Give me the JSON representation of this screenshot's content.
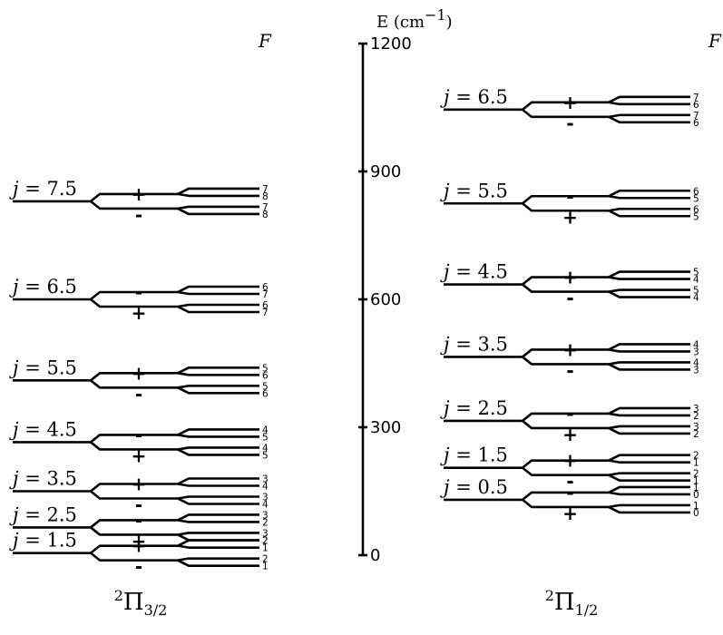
{
  "axis": {
    "title": "E (cm",
    "title_exp": "−1",
    "title_close": ")",
    "ticks": [
      0,
      300,
      600,
      900,
      1200
    ],
    "range": [
      0,
      1200
    ]
  },
  "F_header": "F",
  "ladders": [
    {
      "name": "pi-3-2",
      "title_sup": "2",
      "title_symbol": "Π",
      "title_sub": "3/2",
      "levels": [
        {
          "j": "1.5",
          "energy": 5,
          "upper_parity": "+",
          "lower_parity": "-",
          "F": [
            "2",
            "1",
            "2",
            "1"
          ]
        },
        {
          "j": "2.5",
          "energy": 65,
          "upper_parity": "-",
          "lower_parity": "+",
          "F": [
            "3",
            "2",
            "3",
            "2"
          ]
        },
        {
          "j": "3.5",
          "energy": 150,
          "upper_parity": "+",
          "lower_parity": "-",
          "F": [
            "3",
            "4",
            "3",
            "4"
          ]
        },
        {
          "j": "4.5",
          "energy": 265,
          "upper_parity": "-",
          "lower_parity": "+",
          "F": [
            "4",
            "5",
            "4",
            "5"
          ]
        },
        {
          "j": "5.5",
          "energy": 410,
          "upper_parity": "+",
          "lower_parity": "-",
          "F": [
            "5",
            "6",
            "5",
            "6"
          ]
        },
        {
          "j": "6.5",
          "energy": 600,
          "upper_parity": "-",
          "lower_parity": "+",
          "F": [
            "6",
            "7",
            "6",
            "7"
          ]
        },
        {
          "j": "7.5",
          "energy": 830,
          "upper_parity": "+",
          "lower_parity": "-",
          "F": [
            "7",
            "8",
            "7",
            "8"
          ]
        }
      ]
    },
    {
      "name": "pi-1-2",
      "title_sup": "2",
      "title_symbol": "Π",
      "title_sub": "1/2",
      "levels": [
        {
          "j": "0.5",
          "energy": 130,
          "upper_parity": "-",
          "lower_parity": "+",
          "F": [
            "1",
            "0",
            "1",
            "0"
          ]
        },
        {
          "j": "1.5",
          "energy": 205,
          "upper_parity": "+",
          "lower_parity": "-",
          "F": [
            "2",
            "1",
            "2",
            "1"
          ]
        },
        {
          "j": "2.5",
          "energy": 315,
          "upper_parity": "-",
          "lower_parity": "+",
          "F": [
            "3",
            "2",
            "3",
            "2"
          ]
        },
        {
          "j": "3.5",
          "energy": 465,
          "upper_parity": "+",
          "lower_parity": "-",
          "F": [
            "4",
            "3",
            "4",
            "3"
          ]
        },
        {
          "j": "4.5",
          "energy": 635,
          "upper_parity": "+",
          "lower_parity": "-",
          "F": [
            "5",
            "4",
            "5",
            "4"
          ]
        },
        {
          "j": "5.5",
          "energy": 825,
          "upper_parity": "-",
          "lower_parity": "+",
          "F": [
            "6",
            "5",
            "6",
            "5"
          ]
        },
        {
          "j": "6.5",
          "energy": 1045,
          "upper_parity": "+",
          "lower_parity": "-",
          "F": [
            "7",
            "6",
            "7",
            "6"
          ]
        }
      ]
    }
  ]
}
